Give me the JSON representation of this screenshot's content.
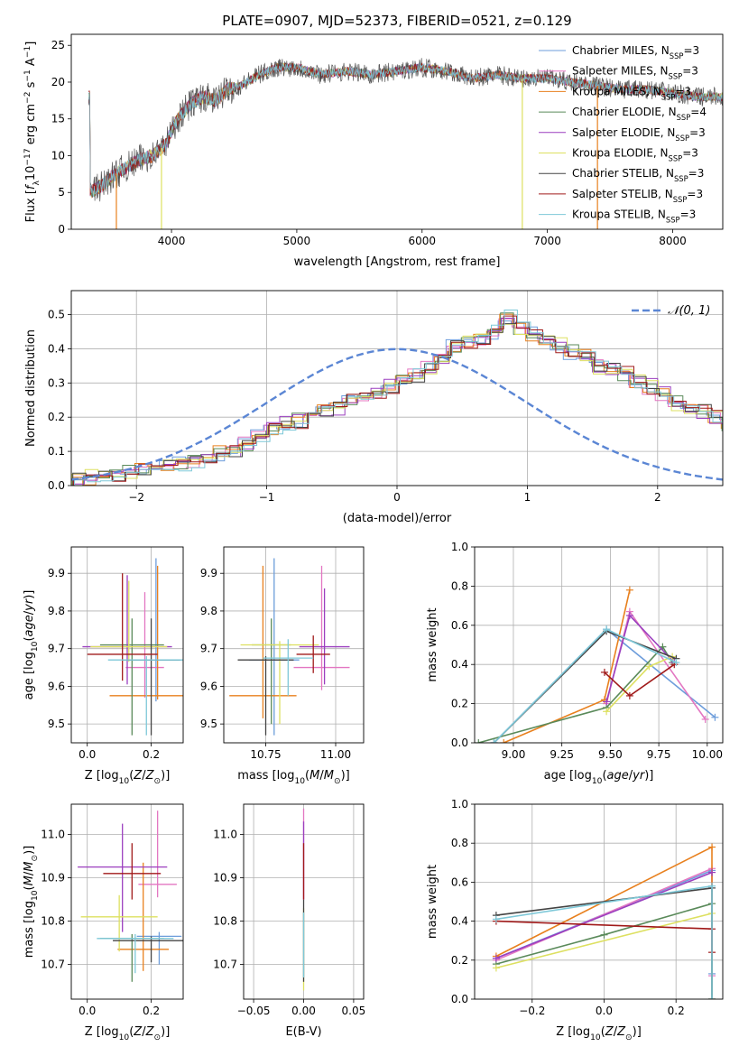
{
  "figure": {
    "title": "PLATE=0907, MJD=52373, FIBERID=0521, z=0.129"
  },
  "colors": {
    "chabrier_miles": "#6d9ddb",
    "salpeter_miles": "#e377c2",
    "kroupa_miles": "#e8801e",
    "chabrier_elodie": "#5a8a5a",
    "salpeter_elodie": "#9b3fbf",
    "kroupa_elodie": "#dde060",
    "chabrier_stelib": "#444444",
    "salpeter_stelib": "#a01a1a",
    "kroupa_stelib": "#7ec8d8",
    "normal_curve": "#5b86d4"
  },
  "chart_data": [
    {
      "id": "spectrum",
      "type": "line",
      "title": "PLATE=0907, MJD=52373, FIBERID=0521, z=0.129",
      "xlabel": "wavelength [Angstrom, rest frame]",
      "ylabel": "Flux [f_λ 10^-17 erg cm^-2 s^-1 A^-1]",
      "xlim": [
        3200,
        8400
      ],
      "ylim": [
        0,
        26.5
      ],
      "xticks": [
        4000,
        5000,
        6000,
        7000,
        8000
      ],
      "yticks": [
        0,
        5,
        10,
        15,
        20,
        25
      ],
      "legend_position": "top-right",
      "legend": [
        {
          "label": "Chabrier MILES, N",
          "sub": "SSP",
          "tail": "=3",
          "color_key": "chabrier_miles"
        },
        {
          "label": "Salpeter MILES, N",
          "sub": "SSP",
          "tail": "=3",
          "color_key": "salpeter_miles"
        },
        {
          "label": "Kroupa MILES, N",
          "sub": "SSP",
          "tail": "=3",
          "color_key": "kroupa_miles"
        },
        {
          "label": "Chabrier ELODIE, N",
          "sub": "SSP",
          "tail": "=4",
          "color_key": "chabrier_elodie"
        },
        {
          "label": "Salpeter ELODIE, N",
          "sub": "SSP",
          "tail": "=3",
          "color_key": "salpeter_elodie"
        },
        {
          "label": "Kroupa ELODIE, N",
          "sub": "SSP",
          "tail": "=3",
          "color_key": "kroupa_elodie"
        },
        {
          "label": "Chabrier STELIB, N",
          "sub": "SSP",
          "tail": "=3",
          "color_key": "chabrier_stelib"
        },
        {
          "label": "Salpeter STELIB, N",
          "sub": "SSP",
          "tail": "=3",
          "color_key": "salpeter_stelib"
        },
        {
          "label": "Kroupa STELIB, N",
          "sub": "SSP",
          "tail": "=3",
          "color_key": "kroupa_stelib"
        }
      ],
      "envelope": {
        "x": [
          3350,
          3450,
          3550,
          3650,
          3750,
          3850,
          3950,
          4050,
          4150,
          4250,
          4350,
          4450,
          4550,
          4700,
          4850,
          5000,
          5200,
          5400,
          5600,
          5800,
          6000,
          6200,
          6400,
          6600,
          6800,
          7000,
          7200,
          7400,
          7600,
          7800,
          8000,
          8200,
          8400
        ],
        "y": [
          5,
          6,
          7.5,
          8.5,
          9.5,
          10,
          11.5,
          15,
          17,
          18,
          17.5,
          19,
          19.5,
          21,
          22,
          22,
          21,
          21.5,
          21,
          21.5,
          22,
          21.5,
          20.5,
          21,
          20.5,
          20.5,
          20,
          19.5,
          19,
          19,
          18.5,
          18,
          18
        ]
      },
      "drops": [
        {
          "x": 3560,
          "color_key": "kroupa_miles"
        },
        {
          "x": 3920,
          "color_key": "kroupa_elodie"
        },
        {
          "x": 6800,
          "color_key": "kroupa_elodie"
        },
        {
          "x": 7400,
          "color_key": "kroupa_miles"
        }
      ]
    },
    {
      "id": "residuals",
      "type": "histogram",
      "xlabel": "(data-model)/error",
      "ylabel": "Normed distribution",
      "xlim": [
        -2.5,
        2.5
      ],
      "ylim": [
        0,
        0.57
      ],
      "xticks": [
        -2,
        -1,
        0,
        1,
        2
      ],
      "yticks": [
        0.0,
        0.1,
        0.2,
        0.3,
        0.4,
        0.5
      ],
      "grid": true,
      "legend_position": "top-right",
      "legend": [
        {
          "label": "𝒩(0, 1)",
          "color_key": "normal_curve",
          "style": "dashed"
        }
      ],
      "bin_width": 0.1,
      "bin_start": -2.5,
      "base_values": [
        0.02,
        0.025,
        0.03,
        0.035,
        0.04,
        0.045,
        0.05,
        0.06,
        0.065,
        0.075,
        0.09,
        0.095,
        0.1,
        0.12,
        0.14,
        0.17,
        0.18,
        0.19,
        0.21,
        0.22,
        0.23,
        0.26,
        0.26,
        0.27,
        0.29,
        0.3,
        0.32,
        0.34,
        0.37,
        0.41,
        0.42,
        0.43,
        0.45,
        0.49,
        0.46,
        0.44,
        0.42,
        0.41,
        0.39,
        0.38,
        0.35,
        0.34,
        0.33,
        0.3,
        0.29,
        0.27,
        0.24,
        0.23,
        0.22,
        0.2,
        0.18,
        0.16,
        0.14,
        0.13,
        0.11,
        0.1,
        0.09,
        0.08,
        0.075,
        0.07,
        0.06,
        0.05,
        0.05,
        0.045,
        0.04,
        0.035,
        0.03,
        0.025,
        0.02,
        0.02
      ]
    },
    {
      "id": "age-vs-Z",
      "type": "errorbar",
      "xlabel": "Z [log10(Z/Z⊙)]",
      "ylabel": "age  [log10(age/yr)]",
      "xlim": [
        -0.05,
        0.3
      ],
      "ylim": [
        9.45,
        9.97
      ],
      "xticks": [
        0.0,
        0.2
      ],
      "yticks": [
        9.5,
        9.6,
        9.7,
        9.8,
        9.9
      ],
      "grid": true,
      "points": [
        {
          "color_key": "chabrier_miles",
          "x": 0.215,
          "xerr": 0.08,
          "y": 9.67,
          "yerr": [
            0.11,
            0.27
          ]
        },
        {
          "color_key": "salpeter_miles",
          "x": 0.18,
          "xerr": 0.06,
          "y": 9.65,
          "yerr": [
            0.08,
            0.2
          ]
        },
        {
          "color_key": "kroupa_miles",
          "x": 0.22,
          "xerr": 0.15,
          "y": 9.575,
          "yerr": [
            0.01,
            0.345
          ]
        },
        {
          "color_key": "chabrier_elodie",
          "x": 0.14,
          "xerr": 0.1,
          "y": 9.71,
          "yerr": [
            0.24,
            0.07
          ]
        },
        {
          "color_key": "salpeter_elodie",
          "x": 0.125,
          "xerr": 0.14,
          "y": 9.705,
          "yerr": [
            0.1,
            0.19
          ]
        },
        {
          "color_key": "kroupa_elodie",
          "x": 0.13,
          "xerr": 0.12,
          "y": 9.705,
          "yerr": [
            0.04,
            0.175
          ]
        },
        {
          "color_key": "chabrier_stelib",
          "x": 0.2,
          "xerr": 0.09,
          "y": 9.67,
          "yerr": [
            0.2,
            0.11
          ]
        },
        {
          "color_key": "salpeter_stelib",
          "x": 0.11,
          "xerr": 0.11,
          "y": 9.685,
          "yerr": [
            0.07,
            0.215
          ]
        },
        {
          "color_key": "kroupa_stelib",
          "x": 0.185,
          "xerr": 0.12,
          "y": 9.67,
          "yerr": [
            0.2,
            0.01
          ]
        }
      ]
    },
    {
      "id": "age-vs-mass",
      "type": "errorbar",
      "xlabel": "mass [log10(M/M⊙)]",
      "ylabel": "",
      "xlim": [
        10.6,
        11.1
      ],
      "ylim": [
        9.45,
        9.97
      ],
      "xticks": [
        10.75,
        11.0
      ],
      "yticks": [
        9.5,
        9.6,
        9.7,
        9.8,
        9.9
      ],
      "grid": true,
      "points": [
        {
          "color_key": "chabrier_miles",
          "x": 10.78,
          "xerr": 0.09,
          "y": 9.67,
          "yerr": [
            0.2,
            0.27
          ]
        },
        {
          "color_key": "salpeter_miles",
          "x": 10.95,
          "xerr": 0.1,
          "y": 9.65,
          "yerr": [
            0.06,
            0.27
          ]
        },
        {
          "color_key": "kroupa_miles",
          "x": 10.74,
          "xerr": 0.12,
          "y": 9.575,
          "yerr": [
            0.06,
            0.345
          ]
        },
        {
          "color_key": "chabrier_elodie",
          "x": 10.77,
          "xerr": 0.07,
          "y": 9.71,
          "yerr": [
            0.21,
            0.07
          ]
        },
        {
          "color_key": "salpeter_elodie",
          "x": 10.96,
          "xerr": 0.09,
          "y": 9.705,
          "yerr": [
            0.1,
            0.155
          ]
        },
        {
          "color_key": "kroupa_elodie",
          "x": 10.8,
          "xerr": 0.14,
          "y": 9.71,
          "yerr": [
            0.21,
            0.01
          ]
        },
        {
          "color_key": "chabrier_stelib",
          "x": 10.75,
          "xerr": 0.1,
          "y": 9.67,
          "yerr": [
            0.2,
            0.01
          ]
        },
        {
          "color_key": "salpeter_stelib",
          "x": 10.92,
          "xerr": 0.06,
          "y": 9.685,
          "yerr": [
            0.05,
            0.05
          ]
        },
        {
          "color_key": "kroupa_stelib",
          "x": 10.83,
          "xerr": 0.09,
          "y": 9.675,
          "yerr": [
            0.1,
            0.05
          ]
        }
      ]
    },
    {
      "id": "weight-vs-age",
      "type": "line",
      "xlabel": "age  [log10(age/yr)]",
      "ylabel": "mass weight",
      "xlim": [
        8.8,
        10.08
      ],
      "ylim": [
        0.0,
        1.0
      ],
      "xticks": [
        9.0,
        9.25,
        9.5,
        9.75,
        10.0
      ],
      "xtick_labels": [
        "9.00",
        "9.25",
        "9.50",
        "9.75",
        "10.00"
      ],
      "yticks": [
        0.0,
        0.2,
        0.4,
        0.6,
        0.8,
        1.0
      ],
      "grid": true,
      "series": [
        {
          "color_key": "chabrier_miles",
          "x": [
            8.9,
            9.48,
            10.04
          ],
          "y": [
            0.0,
            0.58,
            0.13
          ]
        },
        {
          "color_key": "salpeter_miles",
          "x": [
            9.48,
            9.6,
            9.99
          ],
          "y": [
            0.2,
            0.67,
            0.12
          ]
        },
        {
          "color_key": "kroupa_miles",
          "x": [
            8.95,
            9.47,
            9.6
          ],
          "y": [
            0.0,
            0.22,
            0.78
          ]
        },
        {
          "color_key": "chabrier_elodie",
          "x": [
            8.82,
            9.48,
            9.77,
            9.82
          ],
          "y": [
            0.0,
            0.18,
            0.49,
            0.41
          ]
        },
        {
          "color_key": "salpeter_elodie",
          "x": [
            9.48,
            9.6,
            9.83
          ],
          "y": [
            0.21,
            0.65,
            0.41
          ]
        },
        {
          "color_key": "kroupa_elodie",
          "x": [
            9.48,
            9.7,
            9.82
          ],
          "y": [
            0.16,
            0.39,
            0.44
          ]
        },
        {
          "color_key": "chabrier_stelib",
          "x": [
            8.9,
            9.48,
            9.84
          ],
          "y": [
            0.0,
            0.57,
            0.43
          ]
        },
        {
          "color_key": "salpeter_stelib",
          "x": [
            9.47,
            9.6,
            9.83
          ],
          "y": [
            0.36,
            0.24,
            0.4
          ]
        },
        {
          "color_key": "kroupa_stelib",
          "x": [
            8.9,
            9.48,
            9.84
          ],
          "y": [
            0.0,
            0.58,
            0.41
          ]
        }
      ]
    },
    {
      "id": "mass-vs-Z",
      "type": "errorbar",
      "xlabel": "Z [log10(Z/Z⊙)]",
      "ylabel": "mass [log10(M/M⊙)]",
      "xlim": [
        -0.05,
        0.3
      ],
      "ylim": [
        10.62,
        11.07
      ],
      "xticks": [
        0.0,
        0.2
      ],
      "yticks": [
        10.7,
        10.8,
        10.9,
        11.0
      ],
      "grid": true,
      "points": [
        {
          "color_key": "chabrier_miles",
          "x": 0.225,
          "xerr": 0.07,
          "y": 10.765,
          "yerr": [
            0.065,
            0.01
          ]
        },
        {
          "color_key": "salpeter_miles",
          "x": 0.22,
          "xerr": 0.06,
          "y": 10.885,
          "yerr": [
            0.03,
            0.17
          ]
        },
        {
          "color_key": "kroupa_miles",
          "x": 0.175,
          "xerr": 0.08,
          "y": 10.735,
          "yerr": [
            0.05,
            0.2
          ]
        },
        {
          "color_key": "chabrier_elodie",
          "x": 0.14,
          "xerr": 0.1,
          "y": 10.76,
          "yerr": [
            0.1,
            0.01
          ]
        },
        {
          "color_key": "salpeter_elodie",
          "x": 0.11,
          "xerr": 0.14,
          "y": 10.925,
          "yerr": [
            0.15,
            0.1
          ]
        },
        {
          "color_key": "kroupa_elodie",
          "x": 0.1,
          "xerr": 0.12,
          "y": 10.81,
          "yerr": [
            0.08,
            0.05
          ]
        },
        {
          "color_key": "chabrier_stelib",
          "x": 0.2,
          "xerr": 0.12,
          "y": 10.755,
          "yerr": [
            0.05,
            0.01
          ]
        },
        {
          "color_key": "salpeter_stelib",
          "x": 0.14,
          "xerr": 0.09,
          "y": 10.91,
          "yerr": [
            0.06,
            0.07
          ]
        },
        {
          "color_key": "kroupa_stelib",
          "x": 0.15,
          "xerr": 0.12,
          "y": 10.76,
          "yerr": [
            0.08,
            0.01
          ]
        }
      ]
    },
    {
      "id": "mass-vs-EBV",
      "type": "errorbar",
      "xlabel": "E(B-V)",
      "ylabel": "",
      "xlim": [
        -0.06,
        0.06
      ],
      "ylim": [
        10.62,
        11.07
      ],
      "xticks": [
        -0.05,
        0.0,
        0.05
      ],
      "yticks": [
        10.7,
        10.8,
        10.9,
        11.0
      ],
      "grid": true,
      "vbars": [
        {
          "color_key": "kroupa_elodie",
          "y0": 10.64,
          "y1": 10.83
        },
        {
          "color_key": "chabrier_stelib",
          "y0": 10.66,
          "y1": 10.85
        },
        {
          "color_key": "salpeter_miles",
          "y0": 10.85,
          "y1": 11.06
        },
        {
          "color_key": "salpeter_elodie",
          "y0": 10.85,
          "y1": 11.03
        },
        {
          "color_key": "salpeter_stelib",
          "y0": 10.85,
          "y1": 10.98
        },
        {
          "color_key": "kroupa_stelib",
          "y0": 10.67,
          "y1": 10.82
        }
      ]
    },
    {
      "id": "weight-vs-Z",
      "type": "line",
      "xlabel": "Z [log10(Z/Z⊙)]",
      "ylabel": "mass weight",
      "xlim": [
        -0.36,
        0.33
      ],
      "ylim": [
        0.0,
        1.0
      ],
      "xticks": [
        -0.2,
        0.0,
        0.2
      ],
      "yticks": [
        0.0,
        0.2,
        0.4,
        0.6,
        0.8,
        1.0
      ],
      "grid": true,
      "series": [
        {
          "color_key": "chabrier_miles",
          "x": [
            -0.3,
            0.3,
            0.3
          ],
          "y": [
            0.21,
            0.66,
            0.13
          ]
        },
        {
          "color_key": "salpeter_miles",
          "x": [
            -0.3,
            0.3,
            0.3
          ],
          "y": [
            0.2,
            0.67,
            0.12
          ]
        },
        {
          "color_key": "kroupa_miles",
          "x": [
            -0.3,
            0.3,
            0.3
          ],
          "y": [
            0.22,
            0.78,
            0.0
          ]
        },
        {
          "color_key": "chabrier_elodie",
          "x": [
            -0.3,
            0.0,
            0.3,
            0.3
          ],
          "y": [
            0.18,
            0.33,
            0.49,
            0.0
          ]
        },
        {
          "color_key": "salpeter_elodie",
          "x": [
            -0.3,
            0.3
          ],
          "y": [
            0.21,
            0.65
          ]
        },
        {
          "color_key": "kroupa_elodie",
          "x": [
            -0.3,
            0.3
          ],
          "y": [
            0.16,
            0.44
          ]
        },
        {
          "color_key": "chabrier_stelib",
          "x": [
            -0.3,
            0.3,
            0.3
          ],
          "y": [
            0.43,
            0.57,
            0.0
          ]
        },
        {
          "color_key": "salpeter_stelib",
          "x": [
            -0.3,
            0.3,
            0.3
          ],
          "y": [
            0.4,
            0.36,
            0.24
          ]
        },
        {
          "color_key": "kroupa_stelib",
          "x": [
            -0.3,
            0.3,
            0.3
          ],
          "y": [
            0.41,
            0.58,
            0.0
          ]
        }
      ]
    }
  ]
}
